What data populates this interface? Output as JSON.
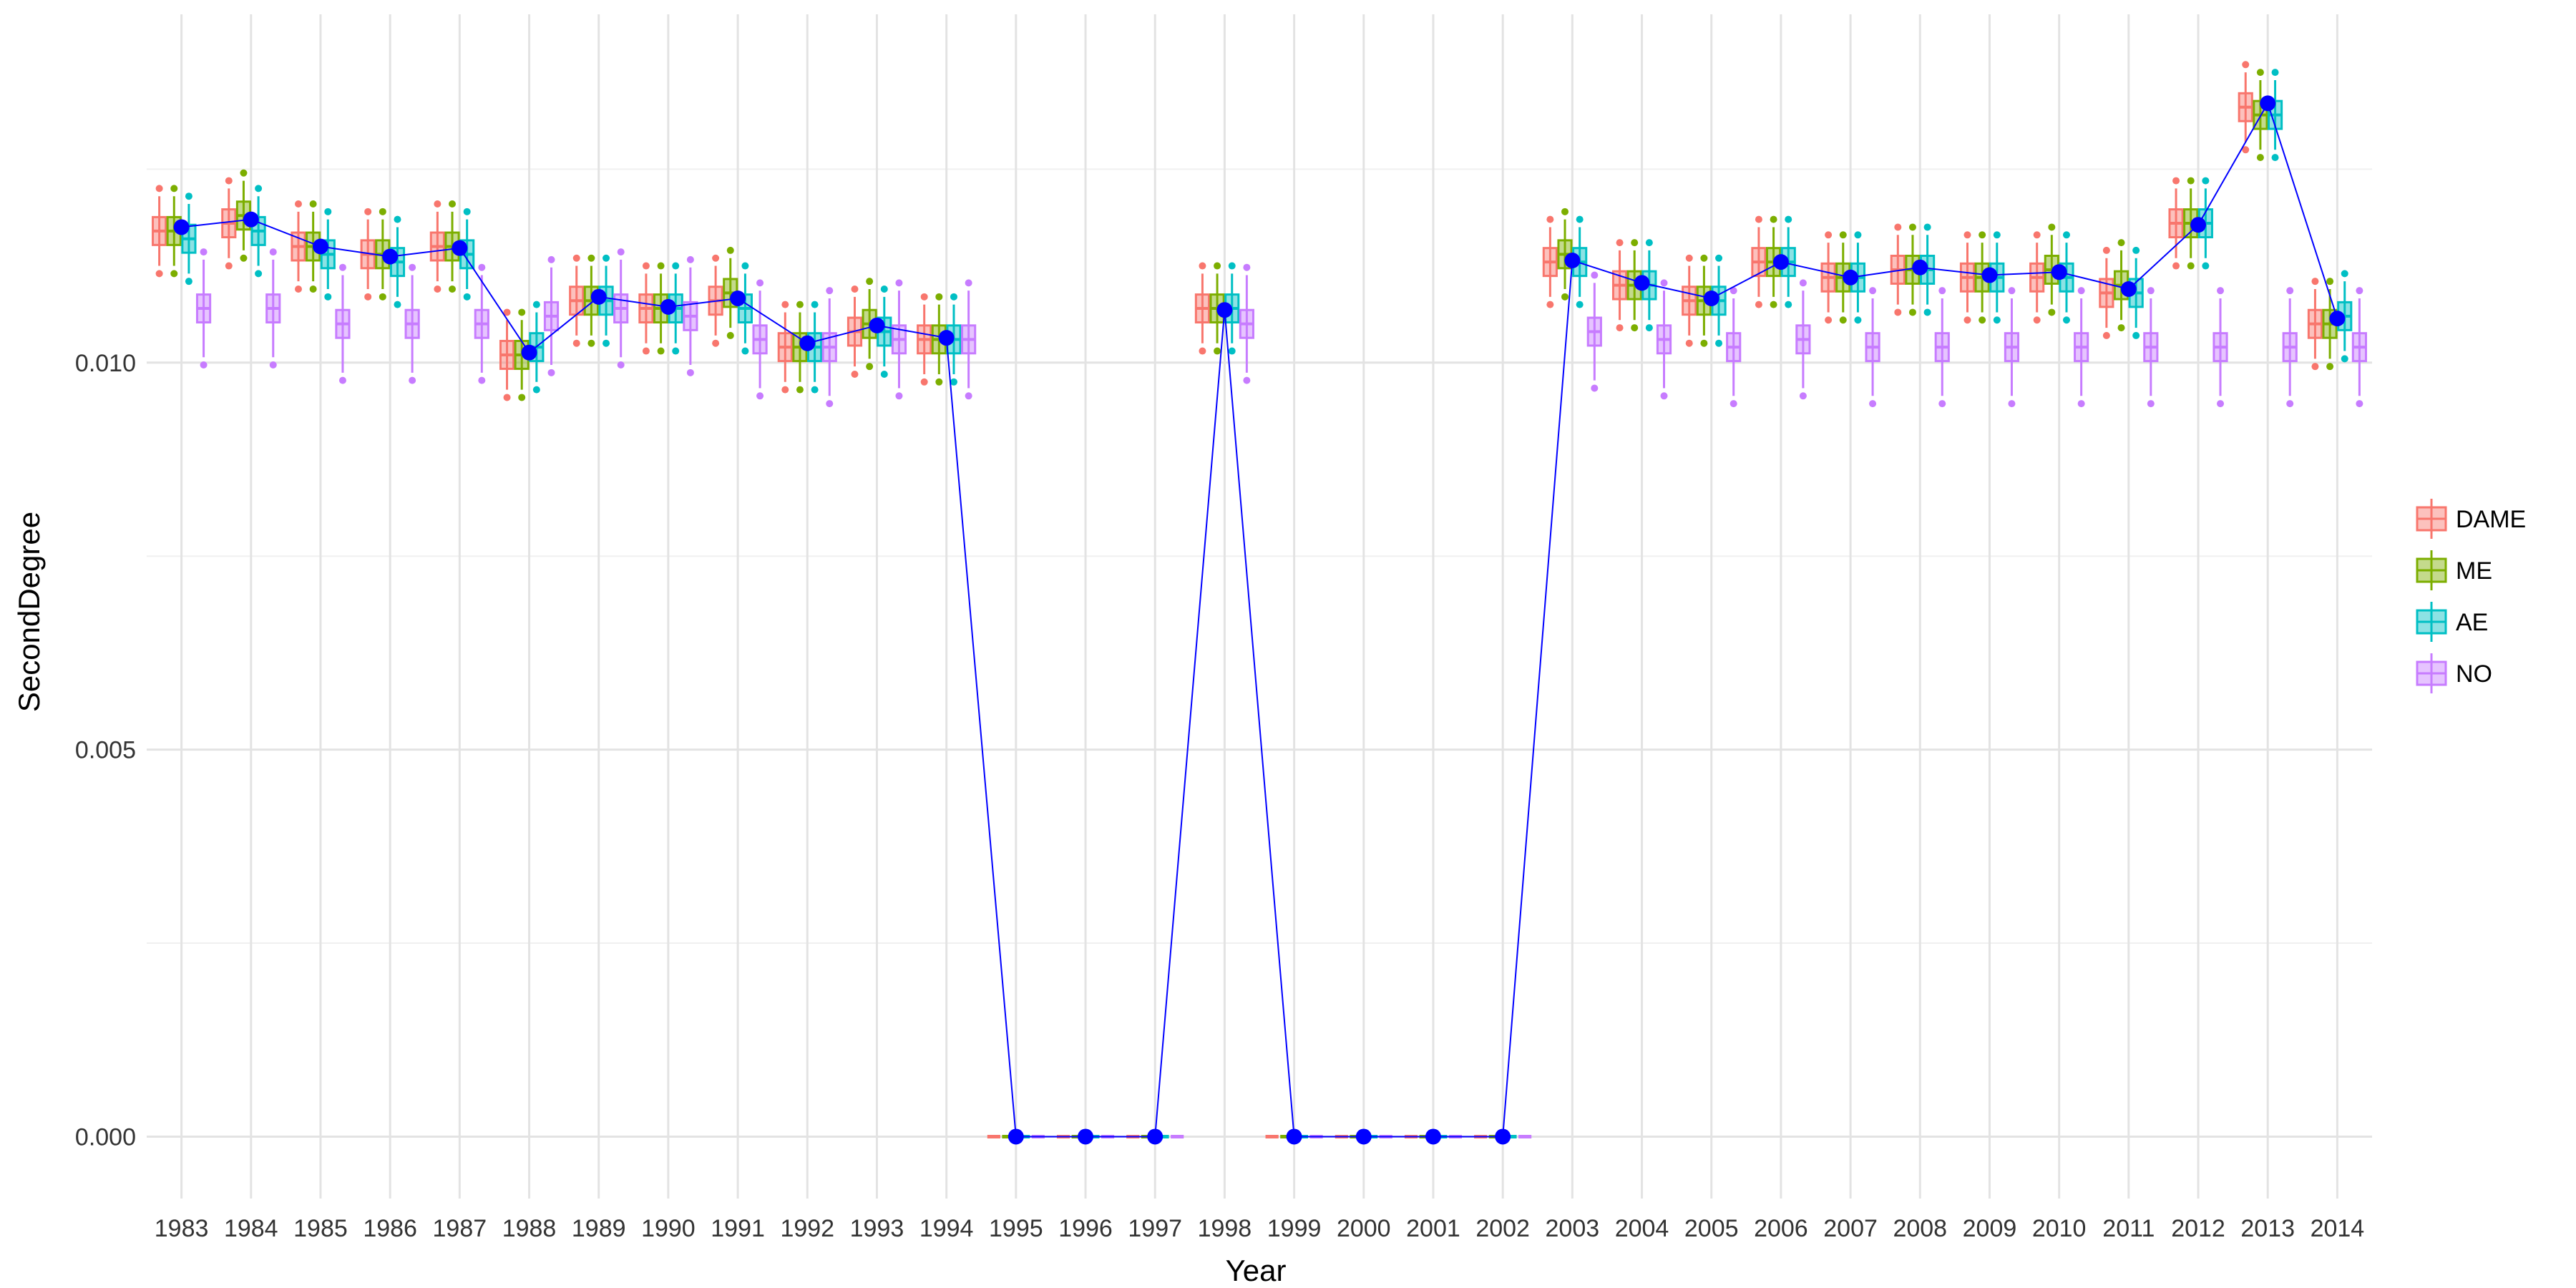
{
  "chart_data": {
    "type": "boxplot",
    "xlabel": "Year",
    "ylabel": "SecondDegree",
    "ylim": [
      -0.0008,
      0.0145
    ],
    "yticks": [
      0.0,
      0.005,
      0.01
    ],
    "ytick_labels": [
      "0.000",
      "0.005",
      "0.010"
    ],
    "grid": true,
    "legend_position": "right",
    "categories": [
      "1983",
      "1984",
      "1985",
      "1986",
      "1987",
      "1988",
      "1989",
      "1990",
      "1991",
      "1992",
      "1993",
      "1994",
      "1995",
      "1996",
      "1997",
      "1998",
      "1999",
      "2000",
      "2001",
      "2002",
      "2003",
      "2004",
      "2005",
      "2006",
      "2007",
      "2008",
      "2009",
      "2010",
      "2011",
      "2012",
      "2013",
      "2014"
    ],
    "series": [
      {
        "name": "DAME",
        "color": "#F8766D",
        "medians": [
          0.0117,
          0.0118,
          0.0115,
          0.0114,
          0.0115,
          0.0101,
          0.0108,
          0.0107,
          0.0108,
          0.0102,
          0.0104,
          0.0103,
          0.0,
          0.0,
          0.0,
          0.0107,
          0.0,
          0.0,
          0.0,
          0.0,
          0.0113,
          0.011,
          0.0108,
          0.0113,
          0.0111,
          0.0112,
          0.0111,
          0.0111,
          0.0109,
          0.0118,
          0.0133,
          0.0105
        ]
      },
      {
        "name": "ME",
        "color": "#7CAE00",
        "medians": [
          0.0117,
          0.0119,
          0.0115,
          0.0114,
          0.0115,
          0.0101,
          0.0108,
          0.0107,
          0.0109,
          0.0102,
          0.0105,
          0.0103,
          0.0,
          0.0,
          0.0,
          0.0107,
          0.0,
          0.0,
          0.0,
          0.0,
          0.0114,
          0.011,
          0.0108,
          0.0113,
          0.0111,
          0.0112,
          0.0111,
          0.0112,
          0.011,
          0.0118,
          0.0132,
          0.0105
        ]
      },
      {
        "name": "AE",
        "color": "#00BFC4",
        "medians": [
          0.0116,
          0.0117,
          0.0114,
          0.0113,
          0.0114,
          0.0102,
          0.0108,
          0.0107,
          0.0107,
          0.0102,
          0.0104,
          0.0103,
          0.0,
          0.0,
          0.0,
          0.0107,
          0.0,
          0.0,
          0.0,
          0.0,
          0.0113,
          0.011,
          0.0108,
          0.0113,
          0.0111,
          0.0112,
          0.0111,
          0.0111,
          0.0109,
          0.0118,
          0.0132,
          0.0106
        ]
      },
      {
        "name": "NO",
        "color": "#C77CFF",
        "medians": [
          0.0107,
          0.0107,
          0.0105,
          0.0105,
          0.0105,
          0.0106,
          0.0107,
          0.0106,
          0.0103,
          0.0102,
          0.0103,
          0.0103,
          0.0,
          0.0,
          0.0,
          0.0105,
          0.0,
          0.0,
          0.0,
          0.0,
          0.0104,
          0.0103,
          0.0102,
          0.0103,
          0.0102,
          0.0102,
          0.0102,
          0.0102,
          0.0102,
          0.0102,
          0.0102,
          0.0102
        ]
      }
    ],
    "overlay_line": {
      "color": "#0000FF",
      "values": [
        0.01175,
        0.01185,
        0.0115,
        0.01137,
        0.01148,
        0.01013,
        0.01085,
        0.01072,
        0.01083,
        0.01025,
        0.01048,
        0.01032,
        0.0,
        0.0,
        0.0,
        0.01068,
        0.0,
        0.0,
        0.0,
        0.0,
        0.01132,
        0.01103,
        0.01083,
        0.0113,
        0.0111,
        0.01123,
        0.01113,
        0.01117,
        0.01095,
        0.01178,
        0.01335,
        0.01057
      ]
    }
  }
}
